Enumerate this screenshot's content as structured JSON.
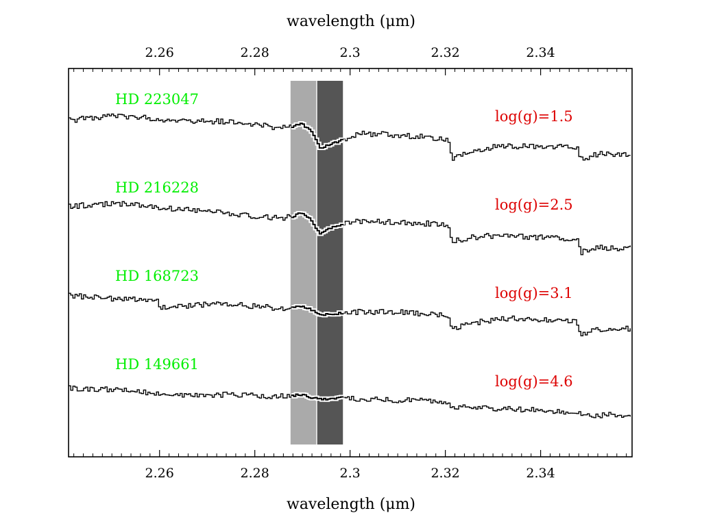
{
  "chart_data": {
    "type": "line",
    "xlabel": "wavelength (μm)",
    "xlabel_top": "wavelength (μm)",
    "xlim": [
      2.2409,
      2.3592
    ],
    "x_ticks": [
      2.26,
      2.28,
      2.3,
      2.32,
      2.34
    ],
    "x_tick_labels": [
      "2.26",
      "2.28",
      "2.3",
      "2.32",
      "2.34"
    ],
    "grid": false,
    "legend": "none",
    "bands": [
      {
        "x": [
          2.2875,
          2.2929
        ],
        "color": "#aaaaaa"
      },
      {
        "x": [
          2.2931,
          2.2985
        ],
        "color": "#555555"
      }
    ],
    "band_highlight_color": "#ffffff",
    "series_color": "#000000",
    "star_label_color": "#00ee00",
    "logg_label_color": "#dd0000",
    "series": [
      {
        "name": "HD 223047",
        "logg_label": "log(g)=1.5",
        "points": [
          [
            2.2409,
            176
          ],
          [
            2.245,
            172
          ],
          [
            2.25,
            169
          ],
          [
            2.255,
            171
          ],
          [
            2.26,
            174
          ],
          [
            2.265,
            176
          ],
          [
            2.27,
            177
          ],
          [
            2.275,
            178
          ],
          [
            2.28,
            182
          ],
          [
            2.285,
            187
          ],
          [
            2.2875,
            186
          ],
          [
            2.2895,
            180
          ],
          [
            2.2915,
            190
          ],
          [
            2.2935,
            216
          ],
          [
            2.2955,
            211
          ],
          [
            2.2985,
            204
          ],
          [
            2.302,
            195
          ],
          [
            2.31,
            197
          ],
          [
            2.315,
            200
          ],
          [
            2.3205,
            204
          ],
          [
            2.3212,
            232
          ],
          [
            2.325,
            222
          ],
          [
            2.33,
            214
          ],
          [
            2.335,
            214
          ],
          [
            2.3475,
            214
          ],
          [
            2.3482,
            233
          ],
          [
            2.352,
            225
          ],
          [
            2.3592,
            226
          ]
        ]
      },
      {
        "name": "HD 216228",
        "logg_label": "log(g)=2.5",
        "points": [
          [
            2.2409,
            302
          ],
          [
            2.245,
            299
          ],
          [
            2.25,
            298
          ],
          [
            2.255,
            298
          ],
          [
            2.26,
            304
          ],
          [
            2.265,
            305
          ],
          [
            2.27,
            309
          ],
          [
            2.275,
            312
          ],
          [
            2.28,
            316
          ],
          [
            2.285,
            318
          ],
          [
            2.2875,
            317
          ],
          [
            2.2895,
            311
          ],
          [
            2.2915,
            320
          ],
          [
            2.2935,
            342
          ],
          [
            2.2955,
            334
          ],
          [
            2.2985,
            327
          ],
          [
            2.302,
            323
          ],
          [
            2.31,
            324
          ],
          [
            2.315,
            326
          ],
          [
            2.3205,
            329
          ],
          [
            2.3212,
            353
          ],
          [
            2.325,
            347
          ],
          [
            2.33,
            344
          ],
          [
            2.335,
            345
          ],
          [
            2.3475,
            350
          ],
          [
            2.3482,
            369
          ],
          [
            2.352,
            362
          ],
          [
            2.3592,
            362
          ]
        ]
      },
      {
        "name": "HD 168723",
        "logg_label": "log(g)=3.1",
        "points": [
          [
            2.2409,
            432
          ],
          [
            2.245,
            433
          ],
          [
            2.25,
            436
          ],
          [
            2.255,
            437
          ],
          [
            2.2595,
            438
          ],
          [
            2.26,
            450
          ],
          [
            2.265,
            448
          ],
          [
            2.27,
            444
          ],
          [
            2.275,
            444
          ],
          [
            2.28,
            447
          ],
          [
            2.285,
            450
          ],
          [
            2.2875,
            450
          ],
          [
            2.2895,
            447
          ],
          [
            2.2915,
            452
          ],
          [
            2.2935,
            460
          ],
          [
            2.2955,
            459
          ],
          [
            2.2985,
            457
          ],
          [
            2.302,
            455
          ],
          [
            2.31,
            455
          ],
          [
            2.315,
            458
          ],
          [
            2.3205,
            461
          ],
          [
            2.3212,
            480
          ],
          [
            2.325,
            472
          ],
          [
            2.33,
            467
          ],
          [
            2.335,
            465
          ],
          [
            2.3475,
            470
          ],
          [
            2.3482,
            489
          ],
          [
            2.352,
            480
          ],
          [
            2.3592,
            480
          ]
        ]
      },
      {
        "name": "HD 149661",
        "logg_label": "log(g)=4.6",
        "points": [
          [
            2.2409,
            567
          ],
          [
            2.245,
            567
          ],
          [
            2.25,
            569
          ],
          [
            2.255,
            572
          ],
          [
            2.26,
            574
          ],
          [
            2.265,
            576
          ],
          [
            2.27,
            577
          ],
          [
            2.275,
            576
          ],
          [
            2.28,
            578
          ],
          [
            2.285,
            578
          ],
          [
            2.2875,
            578
          ],
          [
            2.2895,
            576
          ],
          [
            2.2915,
            580
          ],
          [
            2.2935,
            583
          ],
          [
            2.2955,
            582
          ],
          [
            2.2985,
            580
          ],
          [
            2.302,
            583
          ],
          [
            2.31,
            584
          ],
          [
            2.315,
            584
          ],
          [
            2.3205,
            586
          ],
          [
            2.3212,
            595
          ],
          [
            2.325,
            594
          ],
          [
            2.33,
            597
          ],
          [
            2.335,
            598
          ],
          [
            2.3475,
            602
          ],
          [
            2.3482,
            606
          ],
          [
            2.352,
            606
          ],
          [
            2.3592,
            606
          ]
        ]
      }
    ]
  }
}
